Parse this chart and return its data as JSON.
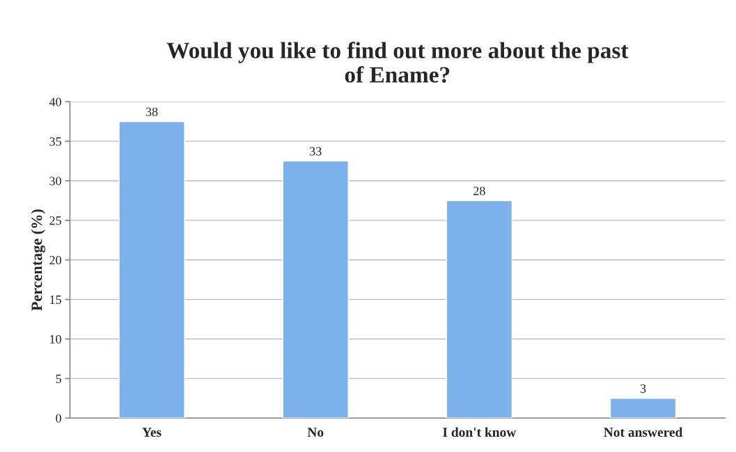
{
  "chart_data": {
    "type": "bar",
    "title": "Would you like to find out more about the past\nof Ename?",
    "ylabel": "Percentage (%)",
    "categories": [
      "Yes",
      "No",
      "I don't know",
      "Not answered"
    ],
    "values": [
      37.5,
      32.5,
      27.5,
      2.5
    ],
    "value_labels": [
      "38",
      "33",
      "28",
      "3"
    ],
    "color": "#7db1ec",
    "ylim": [
      0,
      40
    ],
    "yticks": [
      0,
      5,
      10,
      15,
      20,
      25,
      30,
      35,
      40
    ],
    "grid": "y",
    "legend": false
  }
}
